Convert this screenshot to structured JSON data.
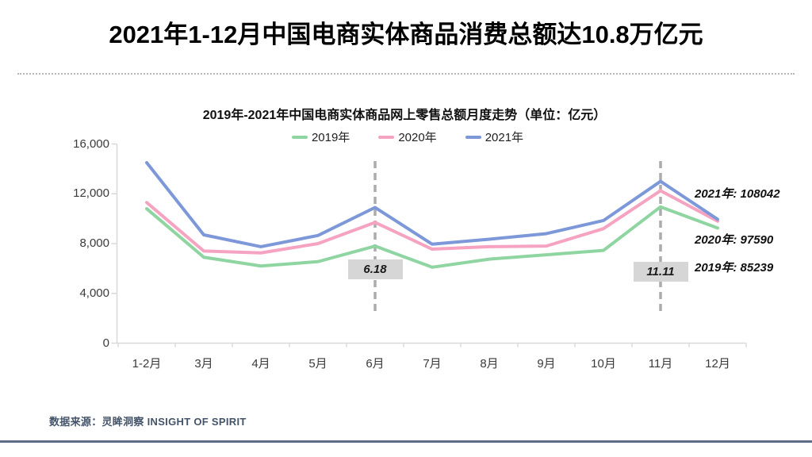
{
  "page": {
    "title": "2021年1-12月中国电商实体商品消费总额达10.8万亿元",
    "source": "数据来源：灵眸洞察 INSIGHT OF SPIRIT"
  },
  "chart_data": {
    "type": "line",
    "title": "2019年-2021年中国电商实体商品网上零售总额月度走势（单位：亿元）",
    "categories": [
      "1-2月",
      "3月",
      "4月",
      "5月",
      "6月",
      "7月",
      "8月",
      "9月",
      "10月",
      "11月",
      "12月"
    ],
    "series": [
      {
        "name": "2019年",
        "color": "#8fd5a1",
        "values": [
          10800,
          6900,
          6200,
          6550,
          7800,
          6100,
          6750,
          7100,
          7450,
          10950,
          9250
        ]
      },
      {
        "name": "2020年",
        "color": "#f5a3c0",
        "values": [
          11300,
          7400,
          7250,
          8000,
          9700,
          7550,
          7750,
          7800,
          9200,
          12250,
          9800
        ]
      },
      {
        "name": "2021年",
        "color": "#7d98d8",
        "values": [
          14500,
          8700,
          7750,
          8650,
          10900,
          7950,
          8350,
          8800,
          9850,
          13000,
          9950
        ]
      }
    ],
    "ylim": [
      0,
      16000
    ],
    "y_ticks": [
      "16,000",
      "12,000",
      "8,000",
      "4,000",
      "0"
    ],
    "grid": false,
    "legend_position": "top",
    "event_markers": [
      {
        "label": "6.18",
        "category": "6月",
        "category_index": 4
      },
      {
        "label": "11.11",
        "category": "11月",
        "category_index": 9
      }
    ],
    "annotations": [
      {
        "label": "2021年: 108042"
      },
      {
        "label": "2020年: 97590"
      },
      {
        "label": "2019年: 85239"
      }
    ],
    "colors": {
      "marker_box": "#d6d6d6",
      "dashed_line": "#acacac",
      "axis": "#d9d9d9"
    }
  }
}
